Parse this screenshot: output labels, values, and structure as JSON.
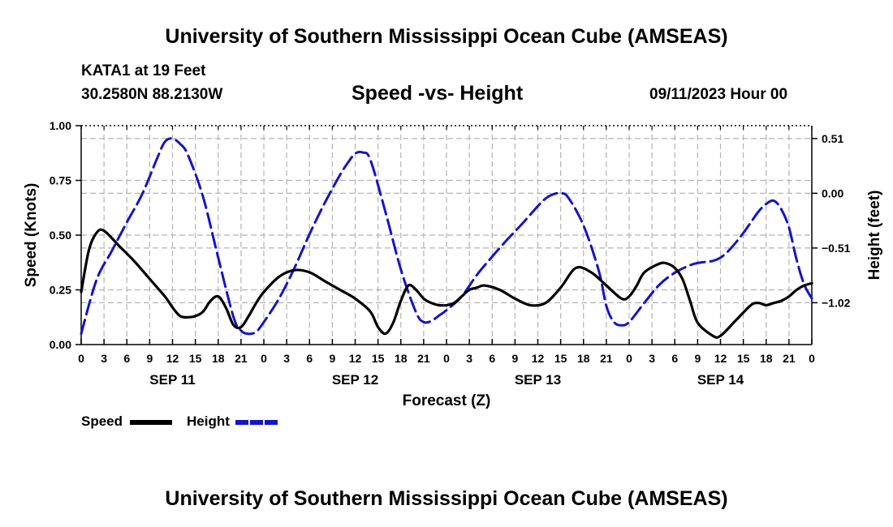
{
  "header": {
    "title": "University of Southern Mississippi Ocean Cube (AMSEAS)",
    "station": "KATA1 at 19 Feet",
    "location": "30.2580N  88.2130W",
    "datetime": "09/11/2023 Hour 00"
  },
  "footer": {
    "title": "University of Southern Mississippi Ocean Cube (AMSEAS)"
  },
  "legend": {
    "speed_label": "Speed",
    "height_label": "Height"
  },
  "chart_data": {
    "type": "line",
    "title": "Speed -vs- Height",
    "xlabel": "Forecast (Z)",
    "ylabel": "Speed (Knots)",
    "y2label": "Height (feet)",
    "xlim": [
      0,
      96
    ],
    "ylim": [
      0,
      1
    ],
    "y2lim": [
      -1.41,
      0.63
    ],
    "x_ticks": [
      0,
      3,
      6,
      9,
      12,
      15,
      18,
      21,
      24,
      27,
      30,
      33,
      36,
      39,
      42,
      45,
      48,
      51,
      54,
      57,
      60,
      63,
      66,
      69,
      72,
      75,
      78,
      81,
      84,
      87,
      90,
      93,
      96
    ],
    "x_tick_labels": [
      "0",
      "3",
      "6",
      "9",
      "12",
      "15",
      "18",
      "21",
      "0",
      "3",
      "6",
      "9",
      "12",
      "15",
      "18",
      "21",
      "0",
      "3",
      "6",
      "9",
      "12",
      "15",
      "18",
      "21",
      "0",
      "3",
      "6",
      "9",
      "12",
      "15",
      "18",
      "21",
      "0"
    ],
    "day_labels": [
      {
        "x": 12,
        "label": "SEP 11"
      },
      {
        "x": 36,
        "label": "SEP 12"
      },
      {
        "x": 60,
        "label": "SEP 13"
      },
      {
        "x": 84,
        "label": "SEP 14"
      }
    ],
    "y_ticks": [
      0,
      0.25,
      0.5,
      0.75,
      1.0
    ],
    "y_tick_labels": [
      "0.00",
      "0.25",
      "0.50",
      "0.75",
      "1.00"
    ],
    "y2_ticks": [
      -1.02,
      -0.51,
      0.0,
      0.51
    ],
    "y2_tick_labels": [
      "-1.02",
      "-0.51",
      "0.00",
      "0.51"
    ],
    "grid": true,
    "colors": {
      "speed": "#000000",
      "height": "#1414c8",
      "grid": "#b4b4b4"
    },
    "series": [
      {
        "name": "Speed",
        "axis": "left",
        "style": "solid",
        "x": [
          0,
          1,
          2,
          3,
          5,
          7,
          9,
          11,
          12,
          13,
          14,
          15,
          16,
          17,
          18,
          19,
          20,
          21,
          22,
          23,
          24,
          26,
          28,
          30,
          32,
          34,
          36,
          38,
          39,
          40,
          41,
          42,
          43,
          44,
          45,
          46,
          47,
          48,
          49,
          50,
          51,
          52,
          53,
          55,
          57,
          59,
          61,
          63,
          65,
          67,
          69,
          71,
          72,
          73,
          74,
          76,
          77,
          78,
          79,
          80,
          81,
          83,
          84,
          86,
          88,
          89,
          90,
          91,
          92,
          93,
          94,
          95,
          96
        ],
        "values": [
          0.24,
          0.43,
          0.51,
          0.52,
          0.45,
          0.38,
          0.3,
          0.22,
          0.17,
          0.13,
          0.125,
          0.13,
          0.15,
          0.2,
          0.22,
          0.17,
          0.09,
          0.08,
          0.13,
          0.19,
          0.24,
          0.31,
          0.34,
          0.33,
          0.29,
          0.25,
          0.21,
          0.15,
          0.08,
          0.05,
          0.1,
          0.2,
          0.27,
          0.25,
          0.21,
          0.19,
          0.18,
          0.18,
          0.19,
          0.22,
          0.25,
          0.26,
          0.27,
          0.25,
          0.21,
          0.18,
          0.19,
          0.26,
          0.35,
          0.33,
          0.27,
          0.21,
          0.22,
          0.27,
          0.33,
          0.37,
          0.37,
          0.35,
          0.3,
          0.2,
          0.1,
          0.04,
          0.04,
          0.11,
          0.18,
          0.19,
          0.18,
          0.19,
          0.2,
          0.22,
          0.25,
          0.27,
          0.28
        ]
      },
      {
        "name": "Height",
        "axis": "right",
        "style": "dashed",
        "x": [
          0,
          2,
          4,
          6,
          8,
          10,
          11,
          12,
          13,
          14,
          16,
          18,
          20,
          21,
          22,
          23,
          24,
          26,
          28,
          30,
          32,
          34,
          35,
          36,
          37,
          38,
          40,
          42,
          44,
          45,
          46,
          47,
          48,
          50,
          52,
          54,
          56,
          58,
          60,
          61,
          62,
          63,
          64,
          66,
          68,
          69,
          70,
          71,
          72,
          74,
          76,
          78,
          80,
          81,
          82,
          83,
          84,
          85,
          86,
          87,
          88,
          89,
          90,
          91,
          92,
          93,
          94,
          95,
          96
        ],
        "values": [
          -1.31,
          -0.81,
          -0.54,
          -0.27,
          -0.01,
          0.33,
          0.48,
          0.51,
          0.46,
          0.36,
          -0.03,
          -0.6,
          -1.15,
          -1.28,
          -1.31,
          -1.29,
          -1.2,
          -0.98,
          -0.7,
          -0.38,
          -0.09,
          0.17,
          0.28,
          0.37,
          0.38,
          0.31,
          -0.18,
          -0.71,
          -1.11,
          -1.2,
          -1.19,
          -1.14,
          -1.09,
          -0.96,
          -0.76,
          -0.59,
          -0.43,
          -0.28,
          -0.12,
          -0.05,
          -0.01,
          0.0,
          -0.04,
          -0.3,
          -0.72,
          -1.05,
          -1.2,
          -1.23,
          -1.2,
          -1.02,
          -0.85,
          -0.74,
          -0.67,
          -0.65,
          -0.64,
          -0.63,
          -0.6,
          -0.54,
          -0.46,
          -0.37,
          -0.27,
          -0.17,
          -0.1,
          -0.07,
          -0.15,
          -0.32,
          -0.62,
          -0.85,
          -0.98
        ]
      }
    ]
  }
}
